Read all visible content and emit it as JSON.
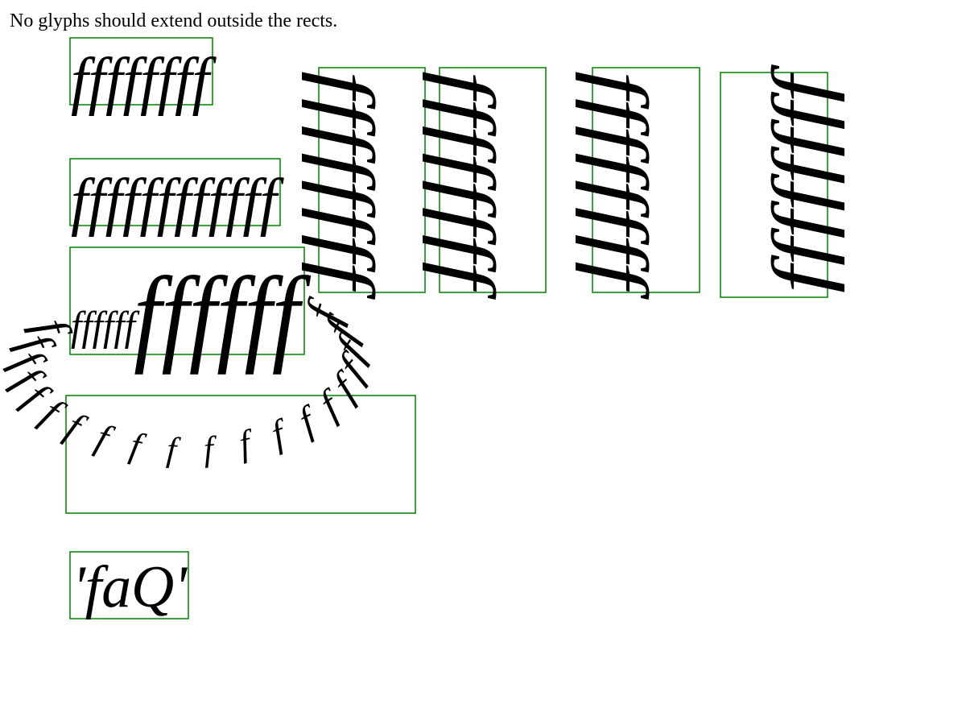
{
  "header": {
    "text": "No glyphs should extend outside the rects."
  },
  "samples": {
    "row1": "ffffffff",
    "row2": "ffffffffffff",
    "row3_small": "ffffff",
    "row3_large": "ffffff",
    "vertical": "ffffffff",
    "arc": "ffffffffffffffffffff",
    "faq": "'faQ'"
  }
}
